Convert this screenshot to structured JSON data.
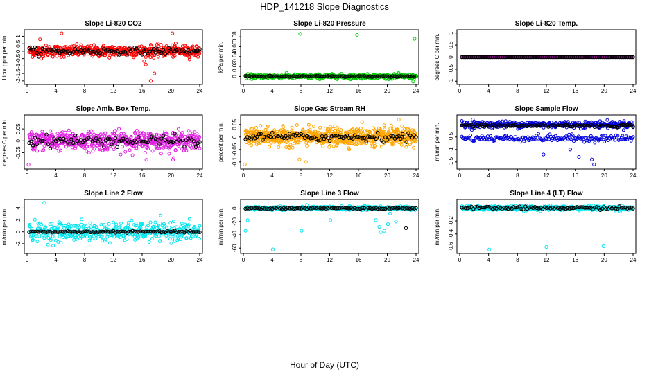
{
  "figure": {
    "title": "HDP_141218  Slope Diagnostics",
    "xlabel": "Hour of Day (UTC)"
  },
  "chart_data": [
    {
      "type": "scatter",
      "title": "Slope Li-820 CO2",
      "ylabel": "Licor ppm per min.",
      "xlim": [
        0,
        24
      ],
      "xticks": [
        0,
        4,
        8,
        12,
        16,
        20,
        24
      ],
      "ylim": [
        -2.1,
        1.3
      ],
      "yticks": [
        -2.0,
        -1.5,
        -1.0,
        -0.5,
        0.0,
        0.5,
        1.0
      ],
      "color": "#ff0000",
      "series": [
        {
          "name": "all",
          "center": 0.0,
          "spread": 0.35,
          "n": 520,
          "outliers": [
            [
              4.8,
              1.2
            ],
            [
              20.2,
              1.2
            ],
            [
              16.5,
              -0.9
            ],
            [
              17.7,
              -1.5
            ],
            [
              17.2,
              -2.0
            ],
            [
              1.8,
              0.8
            ]
          ]
        },
        {
          "name": "hourly",
          "color": "#000000",
          "center": 0.0,
          "spread": 0.2,
          "n": 90,
          "outliers": []
        }
      ]
    },
    {
      "type": "scatter",
      "title": "Slope Li-820 Pressure",
      "ylabel": "kPa per min.",
      "xlim": [
        0,
        24
      ],
      "xticks": [
        0,
        4,
        8,
        12,
        16,
        20,
        24
      ],
      "ylim": [
        -0.012,
        0.09
      ],
      "yticks": [
        0.0,
        0.02,
        0.04,
        0.06,
        0.08
      ],
      "color": "#00cc00",
      "series": [
        {
          "name": "all",
          "center": 0.0,
          "spread": 0.004,
          "n": 520,
          "outliers": [
            [
              7.9,
              0.086
            ],
            [
              15.8,
              0.084
            ],
            [
              23.8,
              0.076
            ],
            [
              23.6,
              -0.01
            ]
          ]
        },
        {
          "name": "hourly",
          "color": "#000000",
          "center": 0.0,
          "spread": 0.001,
          "n": 90,
          "outliers": []
        }
      ]
    },
    {
      "type": "scatter",
      "title": "Slope Li-820 Temp.",
      "ylabel": "degrees C per min.",
      "xlim": [
        0,
        24
      ],
      "xticks": [
        0,
        4,
        8,
        12,
        16,
        20,
        24
      ],
      "ylim": [
        -1.05,
        1.05
      ],
      "yticks": [
        -1.0,
        -0.5,
        0.0,
        0.5,
        1.0
      ],
      "color": "#e020e0",
      "series": [
        {
          "name": "all",
          "center": 0.0,
          "spread": 0.0,
          "n": 320,
          "outliers": []
        },
        {
          "name": "hourly",
          "color": "#000000",
          "center": 0.0,
          "spread": 0.0,
          "n": 90,
          "outliers": []
        }
      ]
    },
    {
      "type": "scatter",
      "title": "Slope Amb. Box Temp.",
      "ylabel": "degrees C per min.",
      "xlim": [
        0,
        24
      ],
      "xticks": [
        0,
        4,
        8,
        12,
        16,
        20,
        24
      ],
      "ylim": [
        -0.11,
        0.1
      ],
      "yticks": [
        -0.05,
        0.0,
        0.05
      ],
      "color": "#e020e0",
      "series": [
        {
          "name": "all",
          "center": 0.0,
          "spread": 0.035,
          "n": 620,
          "outliers": [
            [
              0.2,
              -0.1
            ],
            [
              16.6,
              -0.08
            ],
            [
              20.3,
              -0.08
            ]
          ]
        },
        {
          "name": "hourly",
          "color": "#000000",
          "center": 0.0,
          "spread": 0.02,
          "n": 90,
          "outliers": []
        }
      ]
    },
    {
      "type": "scatter",
      "title": "Slope Gas Stream RH",
      "ylabel": "percent per min.",
      "xlim": [
        0,
        24
      ],
      "xticks": [
        0,
        4,
        8,
        12,
        16,
        20,
        24
      ],
      "ylim": [
        -0.12,
        0.08
      ],
      "yticks": [
        -0.1,
        -0.05,
        0.0,
        0.05
      ],
      "color": "#ffa500",
      "series": [
        {
          "name": "all",
          "center": 0.0,
          "spread": 0.03,
          "n": 820,
          "outliers": [
            [
              0.2,
              -0.11
            ],
            [
              8.7,
              -0.1
            ],
            [
              16.5,
              0.06
            ],
            [
              21.6,
              0.07
            ],
            [
              7.8,
              -0.09
            ]
          ]
        },
        {
          "name": "hourly",
          "color": "#000000",
          "center": 0.0,
          "spread": 0.015,
          "n": 90,
          "outliers": []
        }
      ]
    },
    {
      "type": "scatter",
      "title": "Slope Sample Flow",
      "ylabel": "ml/min per min.",
      "xlim": [
        0,
        24
      ],
      "xticks": [
        0,
        4,
        8,
        12,
        16,
        20,
        24
      ],
      "ylim": [
        -1.7,
        0.3
      ],
      "yticks": [
        -1.5,
        -1.0,
        -0.5
      ],
      "color": "#0000dd",
      "series": [
        {
          "name": "all",
          "center": 0.0,
          "spread": 0.12,
          "n": 380,
          "outliers": [
            [
              1.8,
              0.2
            ],
            [
              11.6,
              -1.2
            ],
            [
              16.5,
              -1.3
            ],
            [
              18.3,
              -1.4
            ],
            [
              18.6,
              -1.6
            ],
            [
              15.3,
              -1.0
            ]
          ]
        },
        {
          "name": "lower band",
          "center": -0.55,
          "spread": 0.12,
          "n": 180,
          "outliers": []
        },
        {
          "name": "hourly",
          "color": "#000000",
          "center": -0.05,
          "spread": 0.05,
          "n": 90,
          "outliers": []
        }
      ]
    },
    {
      "type": "scatter",
      "title": "Slope Line 2 Flow",
      "ylabel": "ml/min per min.",
      "xlim": [
        0,
        24
      ],
      "xticks": [
        0,
        4,
        8,
        12,
        16,
        20,
        24
      ],
      "ylim": [
        -3.3,
        5.1
      ],
      "yticks": [
        -2,
        0,
        2,
        4
      ],
      "color": "#00e5ee",
      "series": [
        {
          "name": "all",
          "center": 0.0,
          "spread": 1.4,
          "n": 420,
          "outliers": [
            [
              2.4,
              4.9
            ]
          ]
        },
        {
          "name": "hourly",
          "color": "#000000",
          "center": 0.0,
          "spread": 0.1,
          "n": 90,
          "outliers": []
        }
      ]
    },
    {
      "type": "scatter",
      "title": "Slope Line 3 Flow",
      "ylabel": "ml/min per min.",
      "xlim": [
        0,
        24
      ],
      "xticks": [
        0,
        4,
        8,
        12,
        16,
        20,
        24
      ],
      "ylim": [
        -65,
        10
      ],
      "yticks": [
        -60,
        -40,
        -20,
        0
      ],
      "color": "#00e5ee",
      "series": [
        {
          "name": "all",
          "center": 0.0,
          "spread": 2.5,
          "n": 420,
          "outliers": [
            [
              4.1,
              -62
            ],
            [
              8.1,
              -34
            ],
            [
              12.1,
              -18
            ],
            [
              0.6,
              -18
            ],
            [
              0.3,
              -34
            ],
            [
              18.4,
              -18
            ],
            [
              18.9,
              -28
            ],
            [
              19.6,
              -34
            ],
            [
              20.1,
              -24
            ],
            [
              20.4,
              -8
            ],
            [
              21.2,
              -20
            ],
            [
              19.1,
              -36
            ]
          ]
        },
        {
          "name": "hourly",
          "color": "#000000",
          "center": 0.0,
          "spread": 1.2,
          "n": 90,
          "outliers": [
            [
              22.6,
              -30
            ]
          ]
        }
      ]
    },
    {
      "type": "scatter",
      "title": "Slope Line 4 (LT) Flow",
      "ylabel": "ml/min per min.",
      "xlim": [
        0,
        24
      ],
      "xticks": [
        0,
        4,
        8,
        12,
        16,
        20,
        24
      ],
      "ylim": [
        -0.67,
        0.1
      ],
      "yticks": [
        -0.6,
        -0.4,
        -0.2
      ],
      "color": "#00e5ee",
      "series": [
        {
          "name": "all",
          "center": 0.0,
          "spread": 0.03,
          "n": 480,
          "outliers": [
            [
              4.1,
              -0.64
            ],
            [
              12.0,
              -0.6
            ],
            [
              19.9,
              -0.59
            ]
          ]
        },
        {
          "name": "hourly",
          "color": "#000000",
          "center": 0.0,
          "spread": 0.02,
          "n": 90,
          "outliers": []
        }
      ]
    }
  ]
}
